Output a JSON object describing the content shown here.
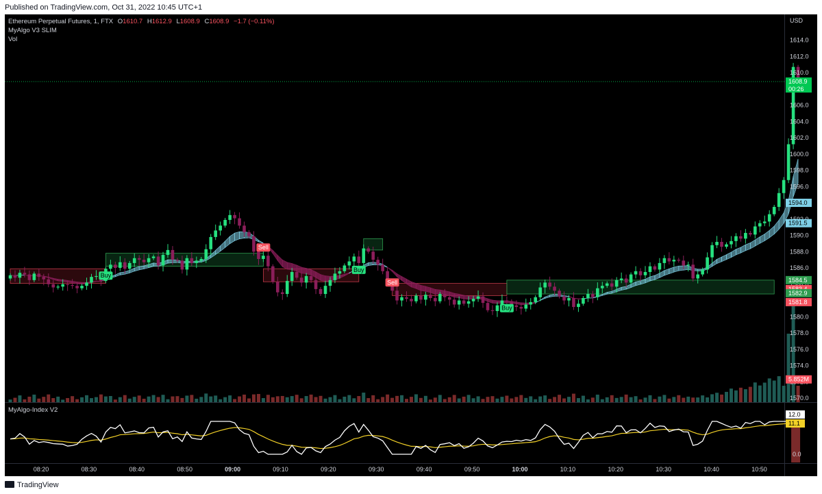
{
  "header": {
    "published": "Published on TradingView.com, Oct 31, 2022 10:45 UTC+1"
  },
  "legend": {
    "symbol": "Ethereum Perpetual Futures, 1, FTX",
    "open_label": "O",
    "open": "1610.7",
    "high_label": "H",
    "high": "1612.9",
    "low_label": "L",
    "low": "1608.9",
    "close_label": "C",
    "close": "1608.9",
    "change": "−1.7 (−0.11%)",
    "indicator1": "MyAlgo V3 SLIM",
    "indicator2": "Vol"
  },
  "indicator_panel_label": "MyAlgo-Index V2",
  "footer": {
    "brand": "TradingView"
  },
  "colors": {
    "up": "#26e07f",
    "down": "#8b1e5a",
    "background": "#000000",
    "band_bull": "#7fd1e8",
    "band_bear": "#8b1e5a",
    "vol_up": "#1f5c55",
    "vol_down": "#7a2a2a",
    "index_line": "#ffffff",
    "index_signal": "#f2d027",
    "buy": "#26e07f",
    "sell": "#f7525f"
  },
  "chart_data": {
    "type": "candlestick",
    "currency": "USD",
    "y_axis": {
      "ticks": [
        1570.0,
        1572.0,
        1574.0,
        1576.0,
        1578.0,
        1580.0,
        1582.0,
        1584.0,
        1586.0,
        1588.0,
        1590.0,
        1592.0,
        1594.0,
        1596.0,
        1598.0,
        1600.0,
        1602.0,
        1604.0,
        1606.0,
        1608.0,
        1610.0,
        1612.0,
        1614.0
      ],
      "range": [
        1569.5,
        1614.8
      ]
    },
    "x_axis": {
      "ticks": [
        "08:20",
        "08:30",
        "08:40",
        "08:50",
        "09:00",
        "09:10",
        "09:20",
        "09:30",
        "09:40",
        "09:50",
        "10:00",
        "10:10",
        "10:20",
        "10:30",
        "10:40",
        "10:50"
      ],
      "bold": [
        "09:00",
        "10:00"
      ]
    },
    "closes": [
      1585.1,
      1584.8,
      1585.4,
      1585.2,
      1584.5,
      1585.3,
      1584.9,
      1584.6,
      1584.0,
      1583.6,
      1583.7,
      1584.0,
      1583.9,
      1583.8,
      1583.5,
      1583.8,
      1584.2,
      1584.9,
      1585.0,
      1584.4,
      1585.9,
      1586.4,
      1586.0,
      1586.7,
      1585.9,
      1586.6,
      1587.2,
      1587.0,
      1586.7,
      1587.2,
      1587.4,
      1586.3,
      1587.6,
      1588.2,
      1587.0,
      1586.9,
      1585.8,
      1587.2,
      1586.6,
      1586.9,
      1587.1,
      1588.3,
      1589.8,
      1590.6,
      1591.2,
      1591.9,
      1592.5,
      1592.1,
      1591.2,
      1590.4,
      1589.9,
      1588.0,
      1587.1,
      1587.5,
      1586.2,
      1584.3,
      1583.0,
      1582.8,
      1584.4,
      1585.5,
      1584.8,
      1584.2,
      1585.0,
      1584.5,
      1583.4,
      1582.8,
      1583.8,
      1584.5,
      1585.3,
      1585.6,
      1586.3,
      1586.8,
      1587.4,
      1586.6,
      1588.4,
      1588.0,
      1587.0,
      1586.4,
      1585.6,
      1584.4,
      1583.2,
      1582.0,
      1582.4,
      1582.2,
      1581.9,
      1582.6,
      1582.1,
      1582.7,
      1582.3,
      1581.9,
      1582.8,
      1582.4,
      1582.1,
      1581.5,
      1582.0,
      1581.6,
      1581.9,
      1582.2,
      1582.5,
      1581.7,
      1580.8,
      1580.7,
      1581.4,
      1582.0,
      1581.9,
      1581.4,
      1581.2,
      1581.0,
      1581.5,
      1581.8,
      1582.4,
      1583.6,
      1584.2,
      1583.7,
      1583.2,
      1582.5,
      1582.0,
      1582.3,
      1581.2,
      1581.6,
      1582.3,
      1582.8,
      1582.4,
      1583.5,
      1583.8,
      1584.1,
      1583.7,
      1584.5,
      1584.7,
      1584.2,
      1585.2,
      1585.6,
      1585.1,
      1585.5,
      1586.2,
      1585.8,
      1586.6,
      1587.2,
      1586.8,
      1587.0,
      1586.9,
      1586.3,
      1586.4,
      1584.7,
      1585.2,
      1585.8,
      1587.3,
      1588.8,
      1589.2,
      1588.6,
      1588.9,
      1589.3,
      1589.9,
      1589.6,
      1590.3,
      1590.1,
      1591.1,
      1591.5,
      1591.7,
      1592.6,
      1593.5,
      1595.2,
      1596.8,
      1601.2,
      1610.7,
      1608.9
    ],
    "signals": [
      {
        "label": "Buy",
        "type": "buy",
        "index": 20
      },
      {
        "label": "Sell",
        "type": "sell",
        "index": 53
      },
      {
        "label": "Buy",
        "type": "buy",
        "index": 73
      },
      {
        "label": "Sell",
        "type": "sell",
        "index": 80
      },
      {
        "label": "Buy",
        "type": "buy",
        "index": 104
      }
    ],
    "zones": [
      {
        "from": 0,
        "to": 20,
        "low": 1584.1,
        "high": 1585.9,
        "type": "bear"
      },
      {
        "from": 20,
        "to": 53,
        "low": 1586.2,
        "high": 1587.8,
        "type": "bull"
      },
      {
        "from": 53,
        "to": 73,
        "low": 1584.3,
        "high": 1585.9,
        "type": "bear"
      },
      {
        "from": 74,
        "to": 78,
        "low": 1588.2,
        "high": 1589.6,
        "type": "bull"
      },
      {
        "from": 80,
        "to": 104,
        "low": 1582.6,
        "high": 1584.1,
        "type": "bear"
      },
      {
        "from": 104,
        "to": 160,
        "low": 1582.8,
        "high": 1584.5,
        "type": "bull"
      }
    ],
    "price_tags": [
      {
        "value": "1608.9",
        "sub": "00:26",
        "color": "#00c853",
        "y": 1608.9
      },
      {
        "value": "1594.0",
        "color": "#7fd1e8",
        "y": 1594.0
      },
      {
        "value": "1591.5",
        "color": "#7fd1e8",
        "y": 1591.5
      },
      {
        "value": "1584.5",
        "color": "#2e9c4f",
        "y": 1584.5
      },
      {
        "value": "1583.4",
        "color": "#f7525f",
        "y": 1583.4
      },
      {
        "value": "1582.9",
        "color": "#2e9c4f",
        "y": 1582.9
      },
      {
        "value": "1581.8",
        "color": "#f7525f",
        "y": 1581.8
      },
      {
        "value": "5.852M",
        "color": "#f7525f",
        "y": 1572.3
      }
    ],
    "index_panel": {
      "ticks": [
        0.0
      ],
      "value_tags": [
        {
          "value": "12.0",
          "color": "#ffffff"
        },
        {
          "value": "11.1",
          "color": "#f2d027"
        }
      ]
    }
  }
}
